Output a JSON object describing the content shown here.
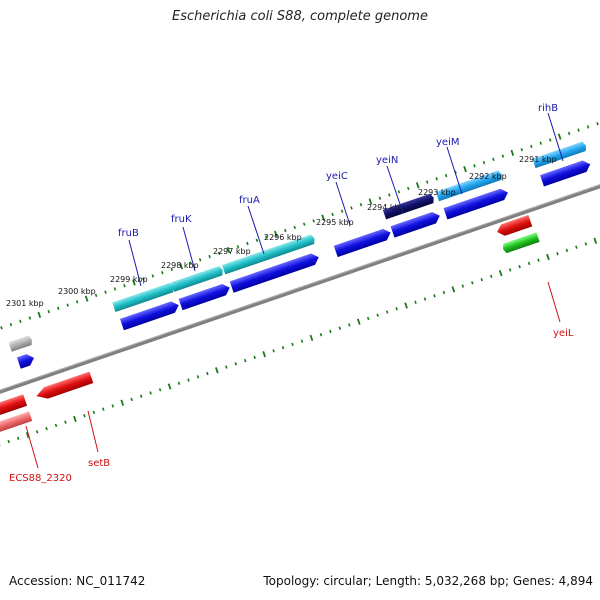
{
  "title": "Escherichia coli S88, complete genome",
  "footer": {
    "accession": "Accession: NC_011742",
    "stats": "Topology: circular; Length: 5,032,268 bp; Genes: 4,894"
  },
  "scale_labels": [
    "2301 kbp",
    "2300 kbp",
    "2299 kbp",
    "2298 kbp",
    "2297 kbp",
    "2296 kbp",
    "2295 kbp",
    "2294 kbp",
    "2293 kbp",
    "2292 kbp",
    "2291 kbp"
  ],
  "genes_top": [
    "fruB",
    "fruK",
    "fruA",
    "yeiC",
    "yeiN",
    "yeiM",
    "rihB"
  ],
  "genes_bottom": [
    "ECS88_2320",
    "setB",
    "yeiL"
  ],
  "colors": {
    "backbone": "#808080",
    "tick": "#1a7a1a",
    "cds_forward": "#1010e0",
    "rna_forward": "#20c0c8",
    "cds_reverse": "#e01010",
    "label_forward": "#1a1ab0",
    "label_reverse": "#cc1111"
  }
}
